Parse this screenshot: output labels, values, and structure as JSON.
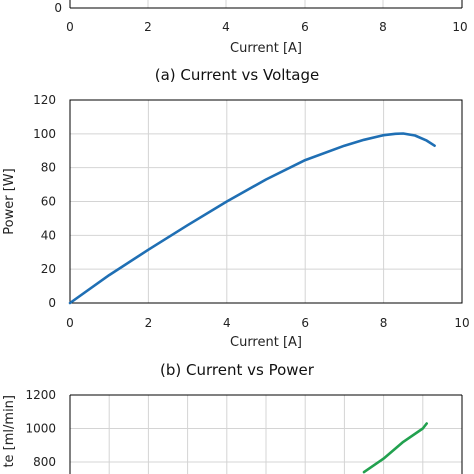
{
  "chart_data": [
    {
      "type": "line",
      "caption": "",
      "xlabel": "Current [A]",
      "ylabel": "",
      "xlim": [
        0,
        10
      ],
      "x_ticks": [
        "0",
        "2",
        "4",
        "6",
        "8",
        "10"
      ],
      "y_ticks": [
        "0"
      ],
      "grid": true,
      "series": []
    },
    {
      "type": "line",
      "caption": "(a) Current vs Voltage",
      "xlabel": "",
      "ylabel": "",
      "series": []
    },
    {
      "type": "line",
      "caption": "(b) Current vs Power",
      "xlabel": "Current [A]",
      "ylabel": "Power [W]",
      "xlim": [
        0,
        10
      ],
      "ylim": [
        0,
        120
      ],
      "x_ticks": [
        "0",
        "2",
        "4",
        "6",
        "8",
        "10"
      ],
      "y_ticks": [
        "0",
        "20",
        "40",
        "60",
        "80",
        "100",
        "120"
      ],
      "grid": true,
      "series": [
        {
          "color": "#1f6fb4",
          "x": [
            0,
            1,
            2,
            3,
            4,
            5,
            6,
            7,
            7.5,
            8,
            8.3,
            8.5,
            8.8,
            9.1,
            9.3
          ],
          "y": [
            0,
            16.5,
            31.5,
            46,
            60,
            73,
            84.5,
            93,
            96.5,
            99.2,
            100,
            100.2,
            99,
            96,
            93
          ]
        }
      ]
    },
    {
      "type": "line",
      "caption": "",
      "xlabel": "",
      "ylabel": "te [ml/min]",
      "ylim": [
        0,
        1200
      ],
      "y_ticks": [
        "800",
        "1000",
        "1200"
      ],
      "grid": true,
      "series": [
        {
          "color": "#22a14f",
          "x": [
            7.5,
            8,
            8.5,
            9.0,
            9.1
          ],
          "y": [
            740,
            820,
            920,
            1000,
            1030
          ]
        }
      ]
    }
  ]
}
